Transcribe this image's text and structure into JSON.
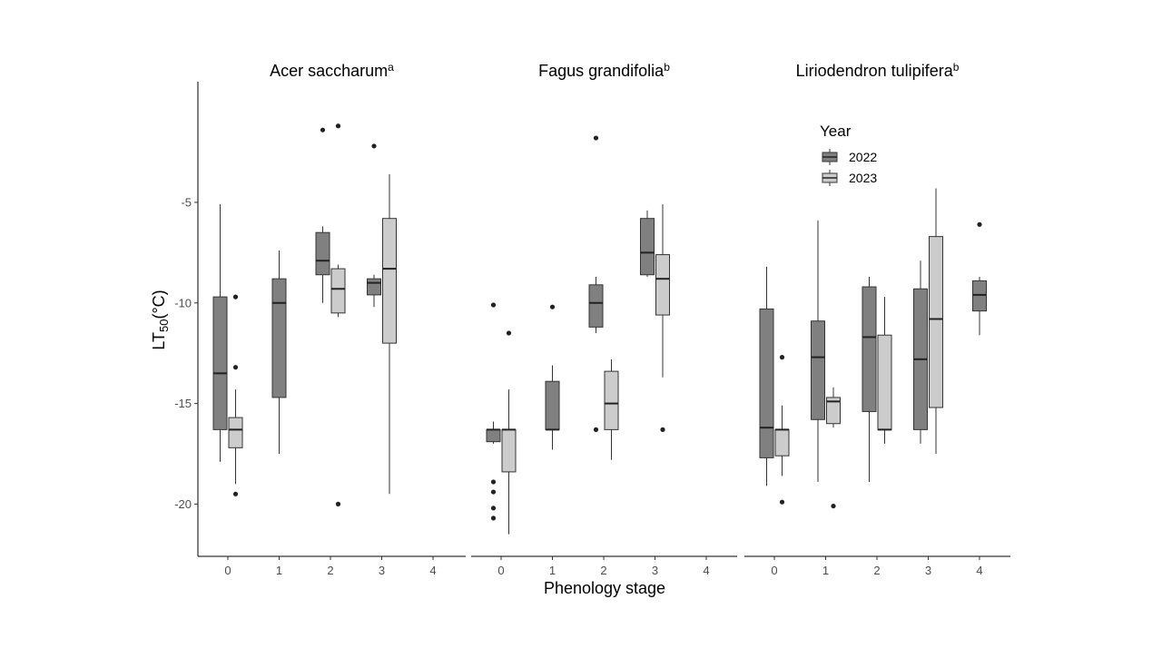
{
  "chart_data": {
    "type": "boxplot",
    "xlabel": "Phenology stage",
    "ylabel": "LT",
    "ylabel_sub": "50",
    "ylabel_unit": "(°C)",
    "ylim": [
      -22.6,
      1.0
    ],
    "yticks": [
      -20,
      -15,
      -10,
      -5
    ],
    "x_categories": [
      "0",
      "1",
      "2",
      "3",
      "4"
    ],
    "legend": {
      "title": "Year",
      "position": "top-right",
      "entries": [
        {
          "label": "2022",
          "color": "#808080"
        },
        {
          "label": "2023",
          "color": "#cccccc"
        }
      ]
    },
    "colors": {
      "2022": "#808080",
      "2023": "#cccccc",
      "outline": "#333333"
    },
    "grid": false,
    "panels": [
      {
        "title": "Acer saccharum",
        "superscript": "a",
        "boxes": [
          {
            "stage": 0,
            "year": "2022",
            "whisker_low": -17.9,
            "q1": -16.3,
            "median": -13.5,
            "q3": -9.7,
            "whisker_high": -5.1,
            "outliers": []
          },
          {
            "stage": 0,
            "year": "2023",
            "whisker_low": -19.0,
            "q1": -17.2,
            "median": -16.3,
            "q3": -15.7,
            "whisker_high": -14.3,
            "outliers": [
              -9.7,
              -13.2,
              -19.5
            ]
          },
          {
            "stage": 1,
            "year": "2022",
            "whisker_low": -17.5,
            "q1": -14.7,
            "median": -10.0,
            "q3": -8.8,
            "whisker_high": -7.4,
            "outliers": []
          },
          {
            "stage": 2,
            "year": "2022",
            "whisker_low": -10.0,
            "q1": -8.6,
            "median": -7.9,
            "q3": -6.5,
            "whisker_high": -6.2,
            "outliers": [
              -1.4
            ]
          },
          {
            "stage": 2,
            "year": "2023",
            "whisker_low": -10.7,
            "q1": -10.5,
            "median": -9.3,
            "q3": -8.3,
            "whisker_high": -8.1,
            "outliers": [
              -1.2,
              -20.0
            ]
          },
          {
            "stage": 3,
            "year": "2022",
            "whisker_low": -10.2,
            "q1": -9.6,
            "median": -9.0,
            "q3": -8.8,
            "whisker_high": -8.6,
            "outliers": [
              -2.2
            ]
          },
          {
            "stage": 3,
            "year": "2023",
            "whisker_low": -19.5,
            "q1": -12.0,
            "median": -8.3,
            "q3": -5.8,
            "whisker_high": -3.6,
            "outliers": []
          }
        ]
      },
      {
        "title": "Fagus grandifolia",
        "superscript": "b",
        "boxes": [
          {
            "stage": 0,
            "year": "2022",
            "whisker_low": -17.0,
            "q1": -16.9,
            "median": -16.3,
            "q3": -16.3,
            "whisker_high": -15.9,
            "outliers": [
              -10.1,
              -18.9,
              -19.4,
              -20.2,
              -20.7
            ]
          },
          {
            "stage": 0,
            "year": "2023",
            "whisker_low": -21.5,
            "q1": -18.4,
            "median": -16.3,
            "q3": -16.3,
            "whisker_high": -14.3,
            "outliers": [
              -11.5
            ]
          },
          {
            "stage": 1,
            "year": "2022",
            "whisker_low": -17.3,
            "q1": -16.3,
            "median": -16.3,
            "q3": -13.9,
            "whisker_high": -13.1,
            "outliers": [
              -10.2
            ]
          },
          {
            "stage": 2,
            "year": "2022",
            "whisker_low": -11.5,
            "q1": -11.2,
            "median": -10.0,
            "q3": -9.1,
            "whisker_high": -8.7,
            "outliers": [
              -1.8,
              -16.3
            ]
          },
          {
            "stage": 2,
            "year": "2023",
            "whisker_low": -17.8,
            "q1": -16.3,
            "median": -15.0,
            "q3": -13.4,
            "whisker_high": -12.8,
            "outliers": []
          },
          {
            "stage": 3,
            "year": "2022",
            "whisker_low": -8.7,
            "q1": -8.6,
            "median": -7.5,
            "q3": -5.8,
            "whisker_high": -5.4,
            "outliers": []
          },
          {
            "stage": 3,
            "year": "2023",
            "whisker_low": -13.7,
            "q1": -10.6,
            "median": -8.8,
            "q3": -7.6,
            "whisker_high": -5.1,
            "outliers": [
              -16.3
            ]
          }
        ]
      },
      {
        "title": "Liriodendron tulipifera",
        "superscript": "b",
        "boxes": [
          {
            "stage": 0,
            "year": "2022",
            "whisker_low": -19.1,
            "q1": -17.7,
            "median": -16.2,
            "q3": -10.3,
            "whisker_high": -8.2,
            "outliers": []
          },
          {
            "stage": 0,
            "year": "2023",
            "whisker_low": -18.6,
            "q1": -17.6,
            "median": -16.3,
            "q3": -16.3,
            "whisker_high": -15.1,
            "outliers": [
              -12.7,
              -19.9
            ]
          },
          {
            "stage": 1,
            "year": "2022",
            "whisker_low": -18.9,
            "q1": -15.8,
            "median": -12.7,
            "q3": -10.9,
            "whisker_high": -5.9,
            "outliers": []
          },
          {
            "stage": 1,
            "year": "2023",
            "whisker_low": -16.2,
            "q1": -16.0,
            "median": -14.9,
            "q3": -14.7,
            "whisker_high": -14.2,
            "outliers": [
              -20.1
            ]
          },
          {
            "stage": 2,
            "year": "2022",
            "whisker_low": -18.9,
            "q1": -15.4,
            "median": -11.7,
            "q3": -9.2,
            "whisker_high": -8.7,
            "outliers": []
          },
          {
            "stage": 2,
            "year": "2023",
            "whisker_low": -17.0,
            "q1": -16.3,
            "median": -16.3,
            "q3": -11.6,
            "whisker_high": -9.7,
            "outliers": []
          },
          {
            "stage": 3,
            "year": "2022",
            "whisker_low": -17.0,
            "q1": -16.3,
            "median": -12.8,
            "q3": -9.3,
            "whisker_high": -7.9,
            "outliers": []
          },
          {
            "stage": 3,
            "year": "2023",
            "whisker_low": -17.5,
            "q1": -15.2,
            "median": -10.8,
            "q3": -6.7,
            "whisker_high": -4.3,
            "outliers": []
          },
          {
            "stage": 4,
            "year": "2022",
            "whisker_low": -11.6,
            "q1": -10.4,
            "median": -9.6,
            "q3": -8.9,
            "whisker_high": -8.7,
            "outliers": [
              -6.1
            ]
          }
        ]
      }
    ]
  }
}
